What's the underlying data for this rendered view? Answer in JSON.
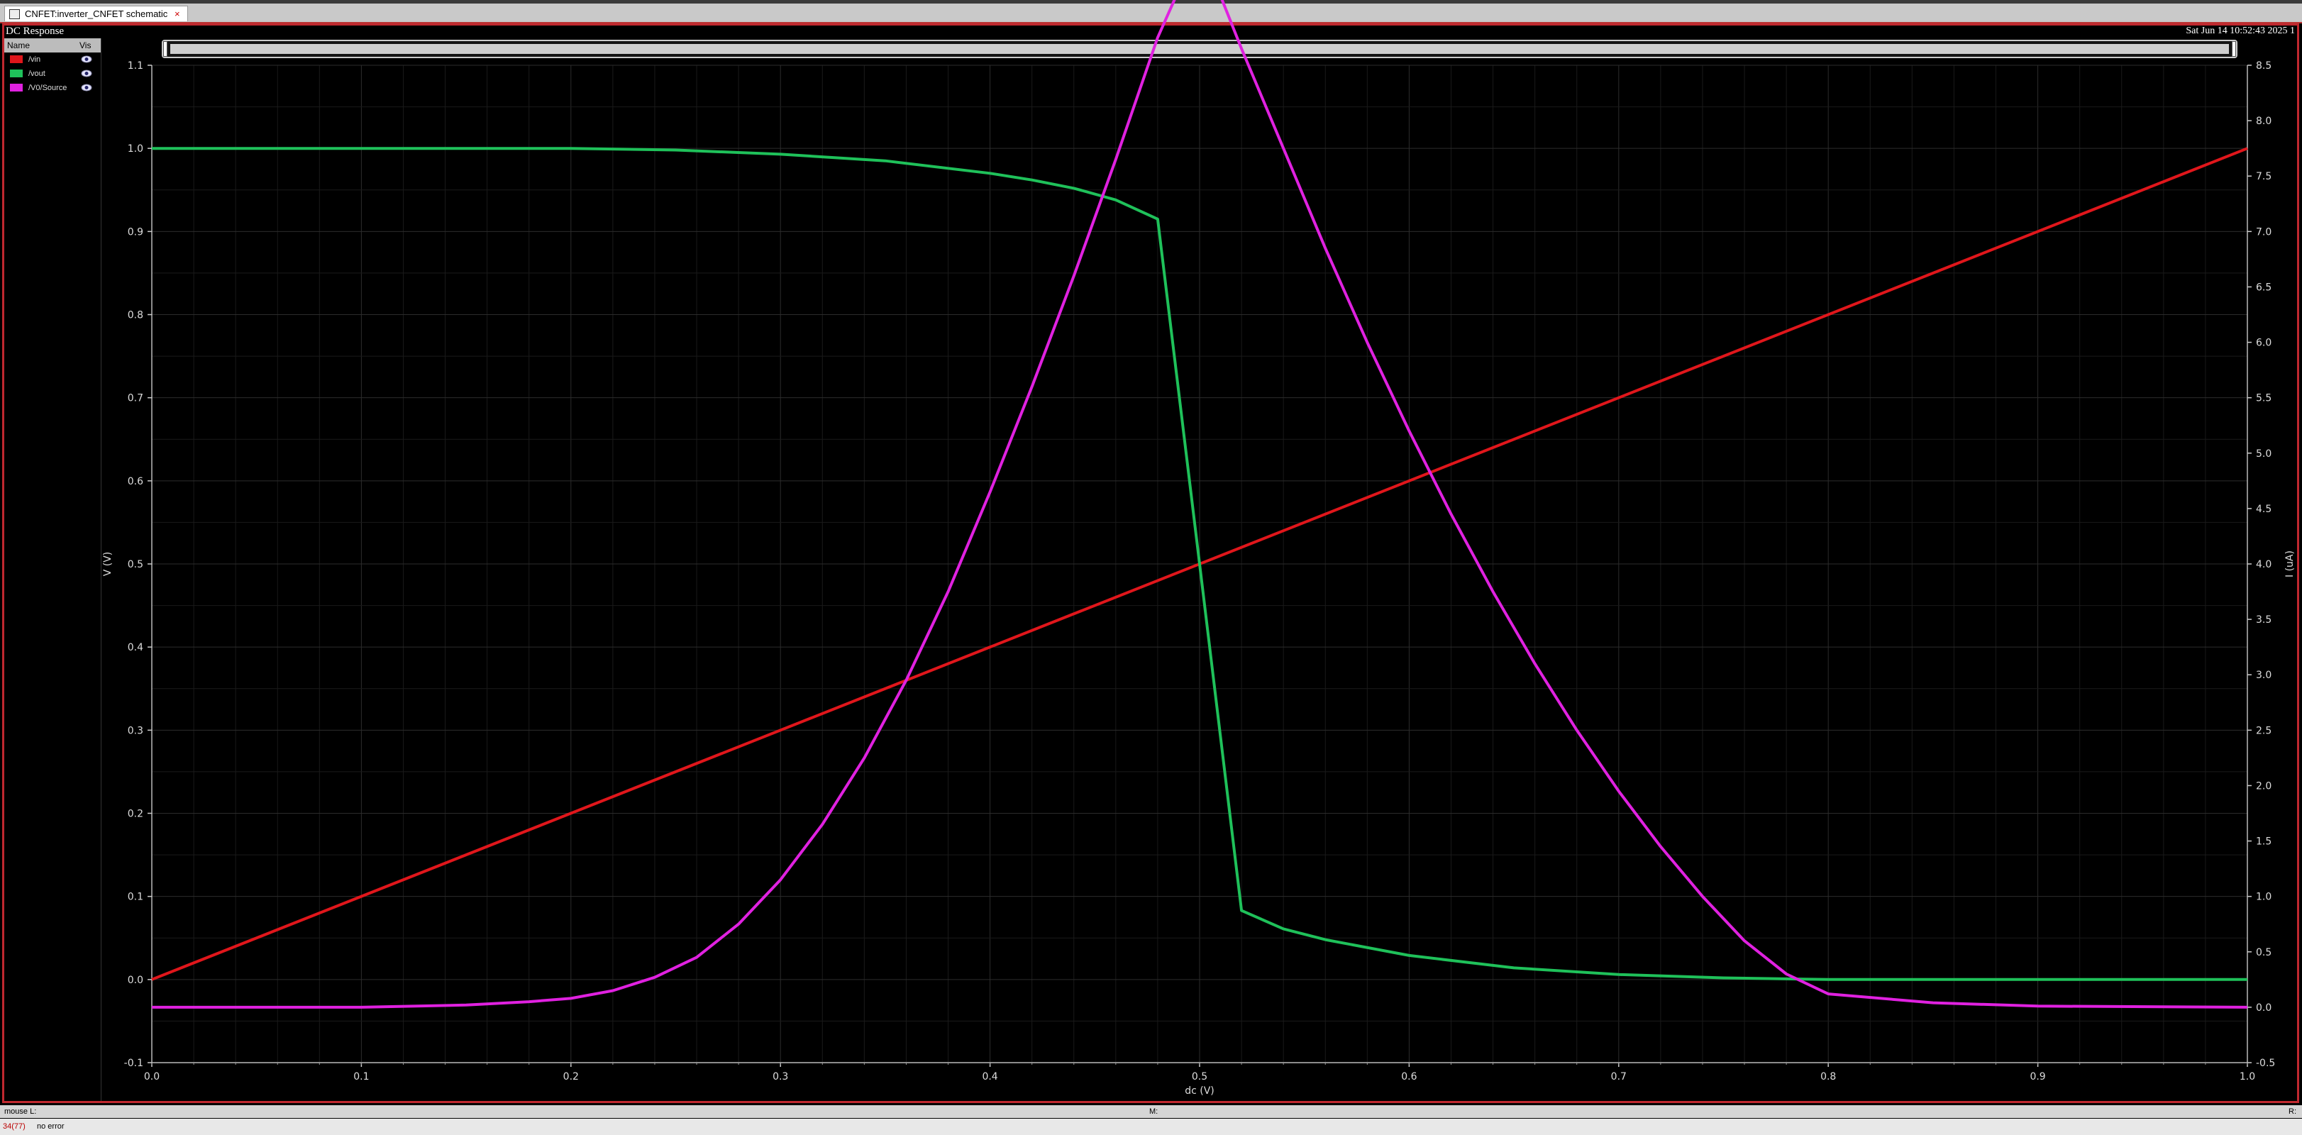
{
  "window": {
    "tab_title": "CNFET:inverter_CNFET schematic",
    "tab_close": "×",
    "subtitle": "DC Response",
    "datestamp": "Sat Jun 14 10:52:43 2025  1"
  },
  "legend": {
    "header_name": "Name",
    "header_vis": "Vis",
    "items": [
      {
        "name": "/vin",
        "color": "#e0161b"
      },
      {
        "name": "/vout",
        "color": "#1fc15a"
      },
      {
        "name": "/V0/Source",
        "color": "#e021e0"
      }
    ]
  },
  "status": {
    "mouse_l": "mouse L:",
    "mouse_m": "M:",
    "mouse_r": "R:",
    "cmd_number": "34(77)",
    "message": "no error"
  },
  "chart_data": {
    "type": "line",
    "xlabel": "dc (V)",
    "ylabel": "V (V)",
    "y2label": "I (uA)",
    "xlim": [
      0.0,
      1.0
    ],
    "ylim": [
      -0.1,
      1.1
    ],
    "y2lim": [
      -0.5,
      8.5
    ],
    "xticks": [
      "0.0",
      "0.1",
      "0.2",
      "0.3",
      "0.4",
      "0.5",
      "0.6",
      "0.7",
      "0.8",
      "0.9",
      "1.0"
    ],
    "yticks": [
      "-0.1",
      "0.0",
      "0.1",
      "0.2",
      "0.3",
      "0.4",
      "0.5",
      "0.6",
      "0.7",
      "0.8",
      "0.9",
      "1.0",
      "1.1"
    ],
    "y2ticks": [
      "-0.5",
      "0.0",
      "0.5",
      "1.0",
      "1.5",
      "2.0",
      "2.5",
      "3.0",
      "3.5",
      "4.0",
      "4.5",
      "5.0",
      "5.5",
      "6.0",
      "6.5",
      "7.0",
      "7.5",
      "8.0",
      "8.5"
    ],
    "grid": true,
    "series": [
      {
        "name": "/vin",
        "axis": "left",
        "color": "#e0161b",
        "x": [
          0.0,
          1.0
        ],
        "y": [
          0.0,
          1.0
        ]
      },
      {
        "name": "/vout",
        "axis": "left",
        "color": "#1fc15a",
        "x": [
          0.0,
          0.2,
          0.25,
          0.3,
          0.35,
          0.4,
          0.42,
          0.44,
          0.46,
          0.48,
          0.5,
          0.52,
          0.54,
          0.56,
          0.6,
          0.65,
          0.7,
          0.75,
          0.8,
          0.9,
          1.0
        ],
        "y": [
          1.0,
          1.0,
          0.998,
          0.993,
          0.985,
          0.97,
          0.962,
          0.952,
          0.938,
          0.915,
          0.5,
          0.083,
          0.061,
          0.048,
          0.029,
          0.014,
          0.006,
          0.002,
          0.0,
          0.0,
          0.0
        ]
      },
      {
        "name": "/V0/Source",
        "axis": "right",
        "color": "#e021e0",
        "x": [
          0.0,
          0.1,
          0.15,
          0.18,
          0.2,
          0.22,
          0.24,
          0.26,
          0.28,
          0.3,
          0.32,
          0.34,
          0.36,
          0.38,
          0.4,
          0.42,
          0.44,
          0.46,
          0.48,
          0.5,
          0.52,
          0.54,
          0.56,
          0.58,
          0.6,
          0.62,
          0.64,
          0.66,
          0.68,
          0.7,
          0.72,
          0.74,
          0.76,
          0.78,
          0.8,
          0.85,
          0.9,
          1.0
        ],
        "y": [
          0.0,
          0.0,
          0.02,
          0.05,
          0.08,
          0.15,
          0.27,
          0.45,
          0.75,
          1.15,
          1.65,
          2.25,
          2.95,
          3.75,
          4.65,
          5.6,
          6.6,
          7.65,
          8.75,
          9.6,
          8.65,
          7.75,
          6.85,
          6.0,
          5.2,
          4.45,
          3.75,
          3.1,
          2.5,
          1.95,
          1.45,
          1.0,
          0.6,
          0.3,
          0.12,
          0.04,
          0.01,
          0.0
        ]
      }
    ]
  }
}
